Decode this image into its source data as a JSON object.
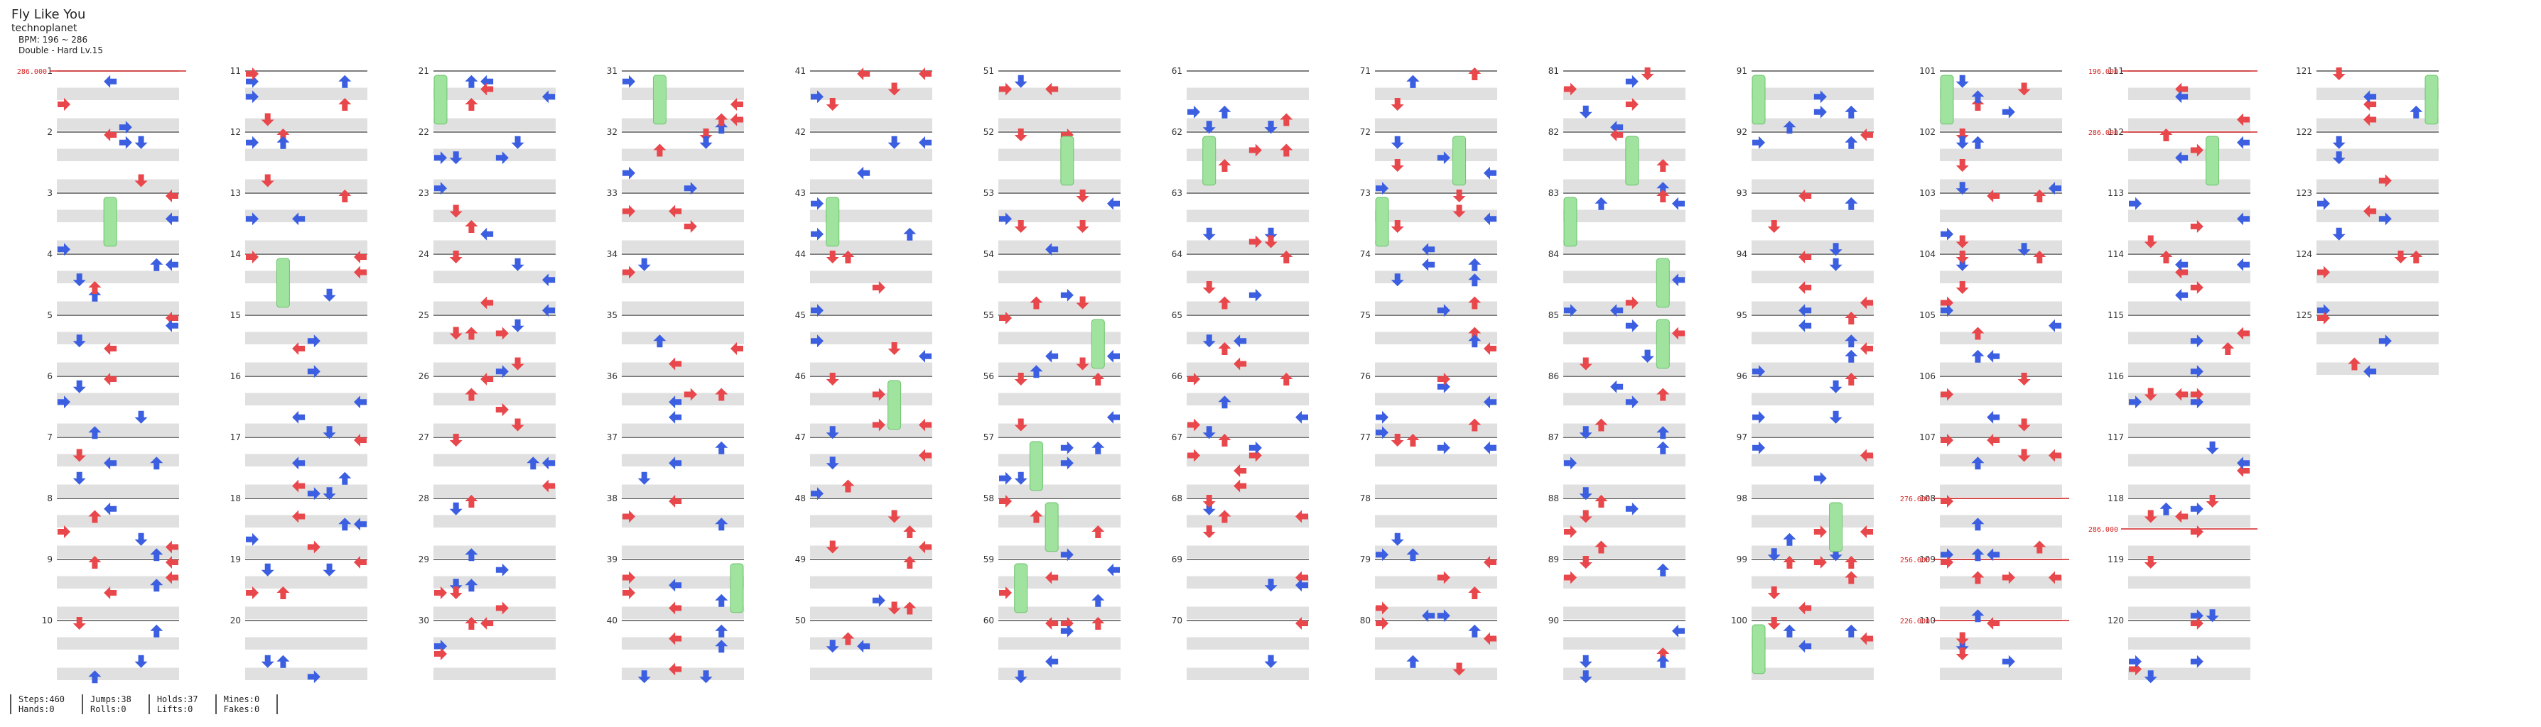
{
  "song": {
    "title": "Fly Like You",
    "artist": "technoplanet",
    "bpm": "BPM: 196 ~ 286",
    "difficulty": "Double - Hard Lv.15"
  },
  "stats": {
    "steps": "Steps:460",
    "hands": "Hands:0",
    "jumps": "Jumps:38",
    "rolls": "Rolls:0",
    "holds": "Holds:37",
    "lifts": "Lifts:0",
    "mines": "Mines:0",
    "fakes": "Fakes:0"
  },
  "colors": {
    "quarter": "#e8474b",
    "eighth": "#3b5fe0",
    "sixteenth": "#f2d43a",
    "twelfth": "#b147e0",
    "hold": "#9fe39f",
    "bpm_marker": "#d42020",
    "beat_band": "#e0e0e0",
    "measure_line": "#333333"
  },
  "chart": {
    "columns": 13,
    "measures_per_column": 10,
    "total_measures": 125,
    "measure_labels": [
      "1",
      "2",
      "3",
      "4",
      "5",
      "6",
      "7",
      "8",
      "9",
      "10",
      "11",
      "12",
      "13",
      "14",
      "15",
      "16",
      "17",
      "18",
      "19",
      "20",
      "21",
      "22",
      "23",
      "24",
      "25",
      "26",
      "27",
      "28",
      "29",
      "30",
      "31",
      "32",
      "33",
      "34",
      "35",
      "36",
      "37",
      "38",
      "39",
      "40",
      "41",
      "42",
      "43",
      "44",
      "45",
      "46",
      "47",
      "48",
      "49",
      "50",
      "51",
      "52",
      "53",
      "54",
      "55",
      "56",
      "57",
      "58",
      "59",
      "60",
      "61",
      "62",
      "63",
      "64",
      "65",
      "66",
      "67",
      "68",
      "69",
      "70",
      "71",
      "72",
      "73",
      "74",
      "75",
      "76",
      "77",
      "78",
      "79",
      "80",
      "81",
      "82",
      "83",
      "84",
      "85",
      "86",
      "87",
      "88",
      "89",
      "90",
      "91",
      "92",
      "93",
      "94",
      "95",
      "96",
      "97",
      "98",
      "99",
      "100",
      "101",
      "102",
      "103",
      "104",
      "105",
      "106",
      "107",
      "108",
      "109",
      "110",
      "111",
      "112",
      "113",
      "114",
      "115",
      "116",
      "117",
      "118",
      "119",
      "120",
      "121",
      "122",
      "123",
      "124",
      "125"
    ],
    "bpm_changes": [
      {
        "label": "286.000",
        "measure": 1,
        "beat": 0
      },
      {
        "label": "286.000",
        "measure": 112,
        "beat": 0
      },
      {
        "label": "276.000",
        "measure": 108,
        "beat": 0
      },
      {
        "label": "256.000",
        "measure": 109,
        "beat": 0
      },
      {
        "label": "226.000",
        "measure": 110,
        "beat": 0
      },
      {
        "label": "196.000",
        "measure": 111,
        "beat": 0
      },
      {
        "label": "286.000",
        "measure": 118,
        "beat": 2
      }
    ]
  }
}
